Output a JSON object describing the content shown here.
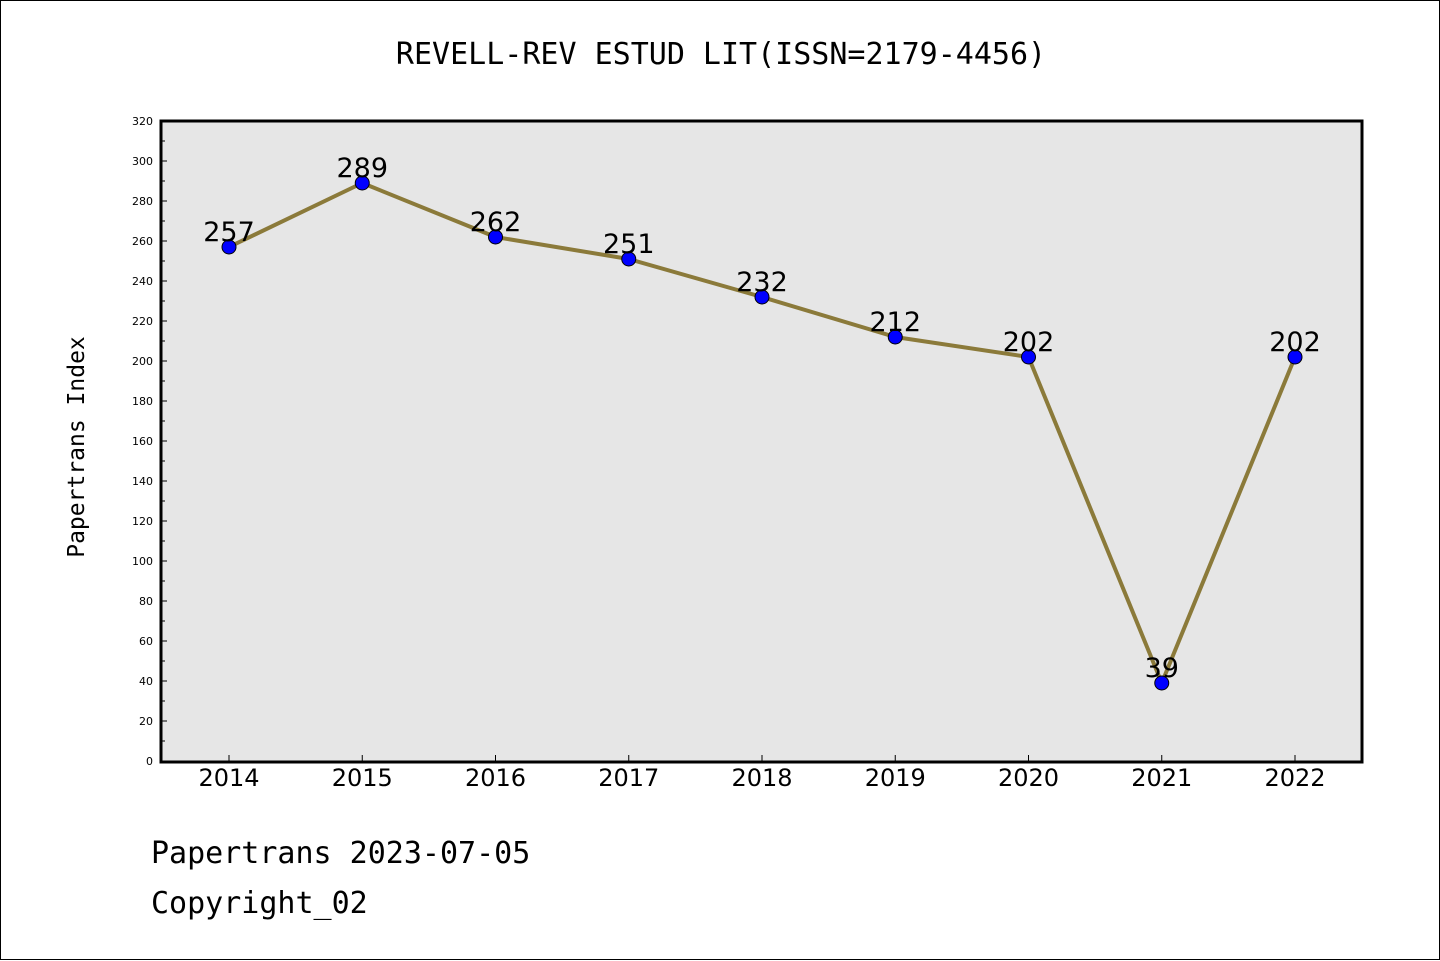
{
  "chart_data": {
    "type": "line",
    "title": "REVELL-REV ESTUD LIT(ISSN=2179-4456)",
    "xlabel": "",
    "ylabel": "Papertrans Index",
    "categories": [
      "2014",
      "2015",
      "2016",
      "2017",
      "2018",
      "2019",
      "2020",
      "2021",
      "2022"
    ],
    "series": [
      {
        "values": [
          257,
          289,
          262,
          251,
          232,
          212,
          202,
          39,
          202
        ]
      }
    ],
    "data_labels": [
      "257",
      "289",
      "262",
      "251",
      "232",
      "212",
      "202",
      "39",
      "202"
    ],
    "ylim": [
      0,
      320
    ],
    "yticks": [
      "0",
      "20",
      "40",
      "60",
      "80",
      "100",
      "120",
      "140",
      "160",
      "180",
      "200",
      "220",
      "240",
      "260",
      "280",
      "300",
      "320"
    ],
    "grid": false,
    "line_color": "#8b7a3a",
    "marker_color": "#0000ff",
    "plot_background": "#e6e6e6"
  },
  "footer": {
    "line1": "Papertrans 2023-07-05",
    "line2": "Copyright_02"
  }
}
